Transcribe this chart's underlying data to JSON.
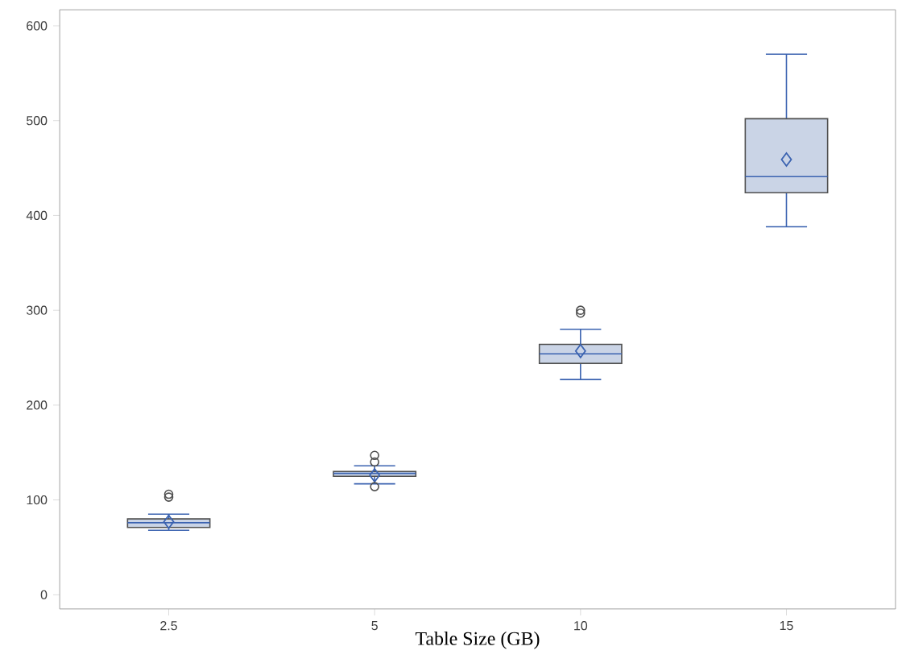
{
  "chart_data": {
    "type": "box",
    "categories": [
      "2.5",
      "5",
      "10",
      "15"
    ],
    "xlabel": "Table Size (GB)",
    "color": "#cad4e6",
    "ylim": [
      -15,
      617
    ],
    "yticks": [
      0,
      100,
      200,
      300,
      400,
      500,
      600
    ],
    "boxes": [
      {
        "low": 68,
        "q1": 71,
        "median": 76,
        "q3": 80,
        "high": 85,
        "mean": 77,
        "outliers": [
          103,
          106
        ]
      },
      {
        "low": 117,
        "q1": 125,
        "median": 128,
        "q3": 130,
        "high": 136,
        "mean": 126,
        "outliers": [
          114,
          140,
          147
        ]
      },
      {
        "low": 227,
        "q1": 244,
        "median": 254,
        "q3": 264,
        "high": 280,
        "mean": 257,
        "outliers": [
          297,
          300
        ]
      },
      {
        "low": 388,
        "q1": 424,
        "median": 441,
        "q3": 502,
        "high": 570,
        "mean": 459
      }
    ]
  }
}
